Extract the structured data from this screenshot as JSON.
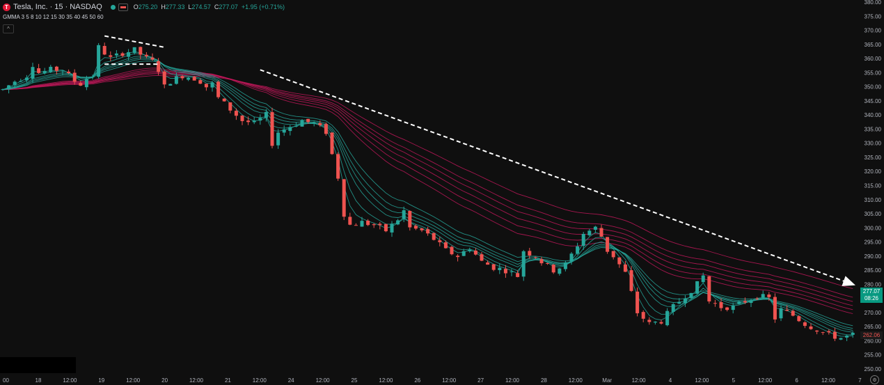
{
  "header": {
    "logo_letter": "T",
    "symbol": "Tesla, Inc. · 15 · NASDAQ",
    "open_label": "O",
    "open": "275.20",
    "high_label": "H",
    "high": "277.33",
    "low_label": "L",
    "low": "274.57",
    "close_label": "C",
    "close": "277.07",
    "change": "+1.95 (+0.71%)"
  },
  "indicator": {
    "label": "GMMA 3 5 8 10 12 15 30 35 40 45 50 60"
  },
  "collapse_glyph": "^",
  "price_tag": {
    "price": "277.07",
    "countdown": "08:26"
  },
  "gmma_tag": {
    "value": "262.06"
  },
  "settings_glyph": "⚙",
  "colors": {
    "up": "#26a69a",
    "down": "#ef5350",
    "short_ema": "#26a69a",
    "long_ema": "#c2185b",
    "background": "#0f0f0f"
  },
  "chart_data": {
    "type": "candlestick",
    "ylim": [
      250,
      380
    ],
    "y_ticks": [
      250,
      255,
      260,
      265,
      270,
      275,
      280,
      285,
      290,
      295,
      300,
      305,
      310,
      315,
      320,
      325,
      330,
      335,
      340,
      345,
      350,
      355,
      360,
      365,
      370,
      375,
      380
    ],
    "x_ticks": [
      "00",
      "18",
      "12:00",
      "19",
      "12:00",
      "20",
      "12:00",
      "21",
      "12:00",
      "24",
      "12:00",
      "25",
      "12:00",
      "26",
      "12:00",
      "27",
      "12:00",
      "28",
      "12:00",
      "Mar",
      "12:00",
      "4",
      "12:00",
      "5",
      "12:00",
      "6",
      "12:00",
      "7"
    ],
    "price_path": [
      [
        0,
        349
      ],
      [
        2,
        352
      ],
      [
        4,
        354
      ],
      [
        5,
        358
      ],
      [
        6,
        355
      ],
      [
        8,
        356
      ],
      [
        10,
        356
      ],
      [
        12,
        352
      ],
      [
        13,
        351
      ],
      [
        14,
        353
      ],
      [
        15,
        354
      ],
      [
        16,
        364
      ],
      [
        18,
        360
      ],
      [
        20,
        362
      ],
      [
        22,
        363
      ],
      [
        24,
        360
      ],
      [
        25,
        359
      ],
      [
        26,
        356
      ],
      [
        27,
        350
      ],
      [
        28,
        352
      ],
      [
        30,
        354
      ],
      [
        32,
        353
      ],
      [
        33,
        352
      ],
      [
        34,
        350
      ],
      [
        35,
        351
      ],
      [
        36,
        346
      ],
      [
        38,
        342
      ],
      [
        40,
        338
      ],
      [
        42,
        337
      ],
      [
        44,
        340
      ],
      [
        45,
        330
      ],
      [
        46,
        334
      ],
      [
        48,
        336
      ],
      [
        50,
        338
      ],
      [
        52,
        337
      ],
      [
        54,
        334
      ],
      [
        56,
        318
      ],
      [
        57,
        305
      ],
      [
        58,
        301
      ],
      [
        60,
        302
      ],
      [
        62,
        301
      ],
      [
        64,
        299
      ],
      [
        66,
        303
      ],
      [
        67,
        306
      ],
      [
        68,
        300
      ],
      [
        70,
        299
      ],
      [
        72,
        296
      ],
      [
        74,
        292
      ],
      [
        76,
        290
      ],
      [
        78,
        293
      ],
      [
        80,
        288
      ],
      [
        82,
        286
      ],
      [
        84,
        285
      ],
      [
        86,
        283
      ],
      [
        87,
        292
      ],
      [
        89,
        290
      ],
      [
        90,
        288
      ],
      [
        92,
        285
      ],
      [
        94,
        287
      ],
      [
        96,
        294
      ],
      [
        97,
        298
      ],
      [
        99,
        300
      ],
      [
        100,
        297
      ],
      [
        101,
        292
      ],
      [
        102,
        290
      ],
      [
        104,
        284
      ],
      [
        106,
        270
      ],
      [
        108,
        266
      ],
      [
        110,
        267
      ],
      [
        112,
        272
      ],
      [
        114,
        276
      ],
      [
        116,
        280
      ],
      [
        117,
        283
      ],
      [
        118,
        274
      ],
      [
        120,
        272
      ],
      [
        122,
        272
      ],
      [
        124,
        274
      ],
      [
        126,
        276
      ],
      [
        128,
        275
      ],
      [
        129,
        268
      ],
      [
        130,
        271
      ],
      [
        132,
        269
      ],
      [
        134,
        266
      ],
      [
        136,
        264
      ],
      [
        138,
        262
      ],
      [
        140,
        261
      ],
      [
        142,
        262
      ]
    ],
    "gmma_short_periods": [
      3,
      5,
      8,
      10,
      12,
      15
    ],
    "gmma_long_periods": [
      30,
      35,
      40,
      45,
      50,
      60
    ],
    "annotations": [
      {
        "type": "dashed_line",
        "from": [
          17,
          368
        ],
        "to": [
          27,
          364
        ]
      },
      {
        "type": "dashed_line",
        "from": [
          17,
          358
        ],
        "to": [
          26,
          358
        ]
      },
      {
        "type": "dashed_arrow",
        "from": [
          43,
          356
        ],
        "to": [
          142,
          280
        ]
      }
    ],
    "last_price": 277.07,
    "grid": false
  }
}
